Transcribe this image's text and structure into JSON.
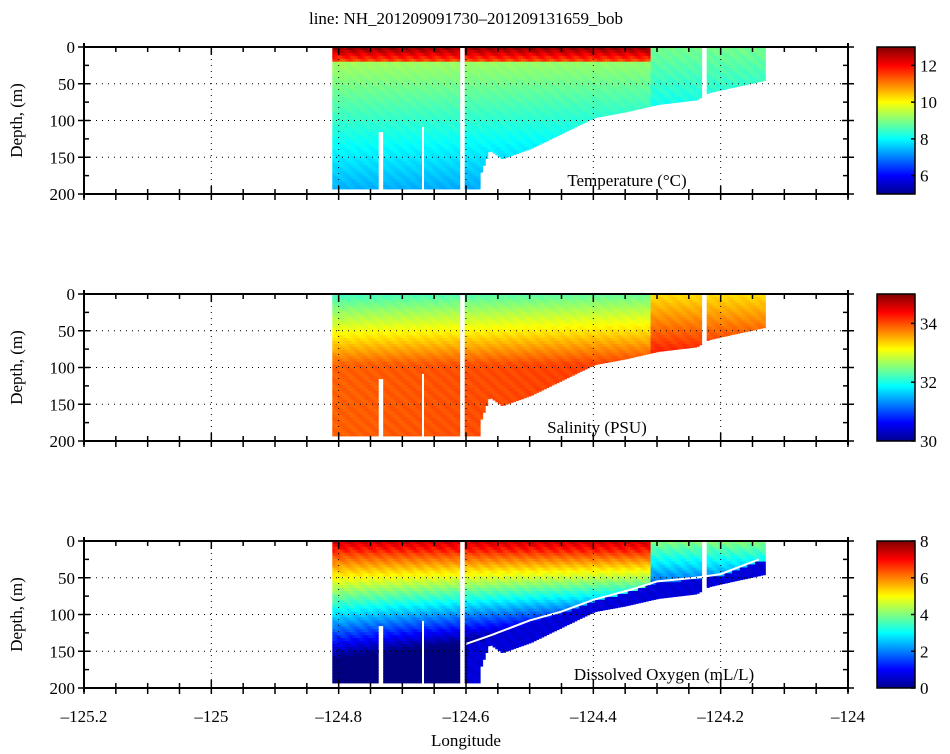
{
  "chart_data": {
    "type": "heatmap",
    "title": "line: NH_201209091730–201209131659_bob",
    "xlabel": "Longitude",
    "xlim": [
      -125.2,
      -124
    ],
    "xticks": [
      -125.2,
      -125,
      -124.8,
      -124.6,
      -124.4,
      -124.2,
      -124
    ],
    "xtick_labels": [
      "–125.2",
      "–125",
      "–124.8",
      "–124.6",
      "–124.4",
      "–124.2",
      "–124"
    ],
    "grid": true,
    "section_extent": {
      "lon_start": -124.81,
      "lon_end": -124.13,
      "gaps": [
        [
          -124.612,
          -124.602
        ],
        [
          -124.232,
          -124.222
        ]
      ],
      "bottom_depth_profile": [
        {
          "lon": -124.81,
          "depth": 193
        },
        {
          "lon": -124.74,
          "depth": 193
        },
        {
          "lon": -124.739,
          "depth": 115
        },
        {
          "lon": -124.734,
          "depth": 115
        },
        {
          "lon": -124.733,
          "depth": 193
        },
        {
          "lon": -124.673,
          "depth": 193
        },
        {
          "lon": -124.672,
          "depth": 108
        },
        {
          "lon": -124.668,
          "depth": 108
        },
        {
          "lon": -124.667,
          "depth": 193
        },
        {
          "lon": -124.58,
          "depth": 193
        },
        {
          "lon": -124.578,
          "depth": 170
        },
        {
          "lon": -124.565,
          "depth": 140
        },
        {
          "lon": -124.545,
          "depth": 152
        },
        {
          "lon": -124.5,
          "depth": 138
        },
        {
          "lon": -124.45,
          "depth": 117
        },
        {
          "lon": -124.4,
          "depth": 96
        },
        {
          "lon": -124.35,
          "depth": 88
        },
        {
          "lon": -124.3,
          "depth": 78
        },
        {
          "lon": -124.24,
          "depth": 72
        },
        {
          "lon": -124.22,
          "depth": 62
        },
        {
          "lon": -124.2,
          "depth": 58
        },
        {
          "lon": -124.13,
          "depth": 45
        }
      ]
    },
    "panels": [
      {
        "variable": "Temperature",
        "label": "Temperature (°C)",
        "ylabel": "Depth, (m)",
        "ylim": [
          0,
          200
        ],
        "yticks": [
          0,
          50,
          100,
          150,
          200
        ],
        "ytick_labels": [
          "0",
          "50",
          "100",
          "150",
          "200"
        ],
        "clim": [
          5,
          13
        ],
        "cticks": [
          6,
          8,
          10,
          12
        ],
        "ctick_labels": [
          "6",
          "8",
          "10",
          "12"
        ],
        "surface_value_offshore": 12.8,
        "surface_value_nearshore": 8.9,
        "mixed_layer_depth": 18,
        "deep_value": 7.6,
        "nearshore_boundary_lon": -124.31
      },
      {
        "variable": "Salinity",
        "label": "Salinity (PSU)",
        "ylabel": "Depth, (m)",
        "ylim": [
          0,
          200
        ],
        "yticks": [
          0,
          50,
          100,
          150,
          200
        ],
        "ytick_labels": [
          "0",
          "50",
          "100",
          "150",
          "200"
        ],
        "clim": [
          30,
          35
        ],
        "cticks": [
          30,
          32,
          34
        ],
        "ctick_labels": [
          "30",
          "32",
          "34"
        ],
        "surface_value_offshore": 32.3,
        "surface_value_nearshore": 33.6,
        "mixed_layer_depth": 30,
        "deep_value": 33.9,
        "nearshore_boundary_lon": -124.31
      },
      {
        "variable": "Dissolved Oxygen",
        "label": "Dissolved Oxygen (mL/L)",
        "ylabel": "Depth, (m)",
        "ylim": [
          0,
          200
        ],
        "yticks": [
          0,
          50,
          100,
          150,
          200
        ],
        "ytick_labels": [
          "0",
          "50",
          "100",
          "150",
          "200"
        ],
        "clim": [
          0,
          8
        ],
        "cticks": [
          0,
          2,
          4,
          6,
          8
        ],
        "ctick_labels": [
          "0",
          "2",
          "4",
          "6",
          "8"
        ],
        "surface_value_offshore": 7.2,
        "surface_value_nearshore": 4.0,
        "mixed_layer_depth": 15,
        "deep_value": 1.6,
        "hypoxic_value": 0.8,
        "nearshore_boundary_lon": -124.31,
        "contour_line": {
          "color": "#ffffff",
          "points": [
            {
              "lon": -124.6,
              "depth": 140
            },
            {
              "lon": -124.56,
              "depth": 128
            },
            {
              "lon": -124.5,
              "depth": 108
            },
            {
              "lon": -124.45,
              "depth": 96
            },
            {
              "lon": -124.4,
              "depth": 80
            },
            {
              "lon": -124.34,
              "depth": 66
            },
            {
              "lon": -124.3,
              "depth": 55
            },
            {
              "lon": -124.24,
              "depth": 50
            },
            {
              "lon": -124.2,
              "depth": 45
            },
            {
              "lon": -124.17,
              "depth": 35
            },
            {
              "lon": -124.14,
              "depth": 25
            }
          ]
        }
      }
    ]
  }
}
